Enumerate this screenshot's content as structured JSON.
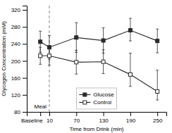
{
  "chart_data": {
    "type": "line",
    "xlabel": "Time from Drink (min)",
    "ylabel": "Glycogen Concentration (mM)",
    "x": [
      -10,
      10,
      70,
      130,
      190,
      250
    ],
    "xlim": [
      -40,
      270
    ],
    "xticks": [
      {
        "value": -10,
        "label": "Baseline"
      },
      10,
      70,
      130,
      190,
      250
    ],
    "ylim": [
      80,
      330
    ],
    "yticks": [
      80,
      120,
      160,
      200,
      240,
      280,
      320
    ],
    "series": [
      {
        "name": "Glucose",
        "color": "#2a2a2a",
        "marker": "square",
        "line_style": "solid",
        "values": [
          245,
          232,
          255,
          248,
          272,
          247
        ],
        "yerr_low": [
          25,
          28,
          35,
          30,
          25,
          28
        ],
        "yerr_high": [
          25,
          28,
          35,
          30,
          28,
          28
        ]
      },
      {
        "name": "Control",
        "color": "#2a2a2a",
        "marker": "open-square",
        "line_style": "solid",
        "values": [
          212,
          212,
          197,
          198,
          168,
          128
        ],
        "yerr_low": [
          20,
          22,
          28,
          28,
          28,
          20
        ],
        "yerr_high": [
          20,
          22,
          28,
          28,
          50,
          50
        ]
      }
    ],
    "annotations": [
      {
        "text": "Meal",
        "x": 10,
        "line_style": "dashed"
      }
    ],
    "legend": "lower center",
    "grid": false
  }
}
